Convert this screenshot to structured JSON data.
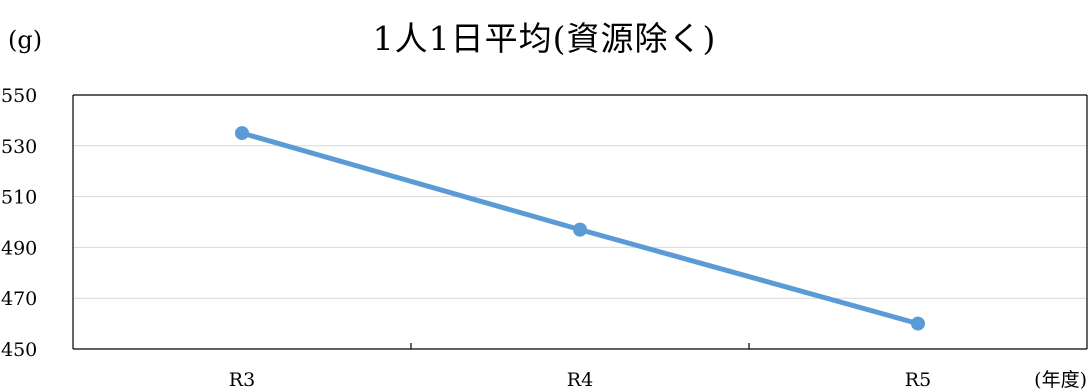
{
  "chart_data": {
    "type": "line",
    "title": "1人1日平均(資源除く)",
    "ylabel": "(g)",
    "xlabel": "(年度)",
    "categories": [
      "R3",
      "R4",
      "R5"
    ],
    "series": [
      {
        "values": [
          535,
          497,
          460
        ],
        "color": "#5B9BD5"
      }
    ],
    "ylim": [
      450,
      550
    ],
    "yticks": [
      450,
      470,
      490,
      510,
      530,
      550
    ],
    "grid": true,
    "legend": "none",
    "marker": "circle"
  }
}
